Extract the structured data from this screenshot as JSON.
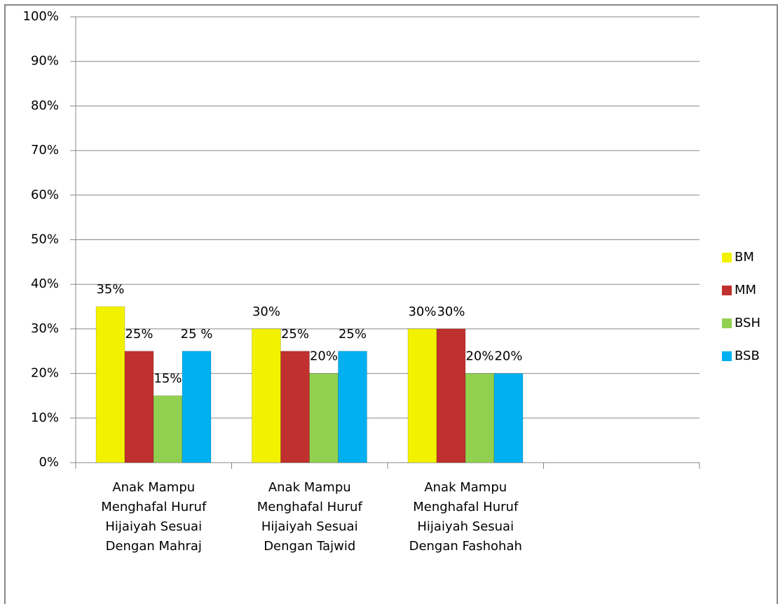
{
  "chart_data": {
    "type": "bar",
    "categories": [
      "Anak Mampu Menghafal Huruf Hijaiyah Sesuai Dengan Mahraj",
      "Anak Mampu Menghafal Huruf Hijaiyah Sesuai Dengan Tajwid",
      "Anak Mampu Menghafal Huruf Hijaiyah Sesuai Dengan Fashohah",
      null
    ],
    "series": [
      {
        "name": "BM",
        "color": "#f2f200",
        "values": [
          35,
          30,
          30,
          null
        ],
        "value_labels": [
          "35%",
          "30%",
          "30%",
          null
        ]
      },
      {
        "name": "MM",
        "color": "#c0302e",
        "values": [
          25,
          25,
          30,
          null
        ],
        "value_labels": [
          "25%",
          "25%",
          "30%",
          null
        ]
      },
      {
        "name": "BSH",
        "color": "#92d050",
        "values": [
          15,
          20,
          20,
          null
        ],
        "value_labels": [
          "15%",
          "20%",
          "20%",
          null
        ]
      },
      {
        "name": "BSB",
        "color": "#00b0f0",
        "values": [
          25,
          25,
          20,
          null
        ],
        "value_labels": [
          "25 %",
          "25%",
          "20%",
          null
        ]
      }
    ],
    "ylim": [
      0,
      100
    ],
    "yticks": [
      {
        "value": 0,
        "label": "0%"
      },
      {
        "value": 10,
        "label": "10%"
      },
      {
        "value": 20,
        "label": "20%"
      },
      {
        "value": 30,
        "label": "30%"
      },
      {
        "value": 40,
        "label": "40%"
      },
      {
        "value": 50,
        "label": "50%"
      },
      {
        "value": 60,
        "label": "60%"
      },
      {
        "value": 70,
        "label": "70%"
      },
      {
        "value": 80,
        "label": "80%"
      },
      {
        "value": 90,
        "label": "90%"
      },
      {
        "value": 100,
        "label": "100%"
      }
    ],
    "grid": true,
    "legend": "right"
  }
}
